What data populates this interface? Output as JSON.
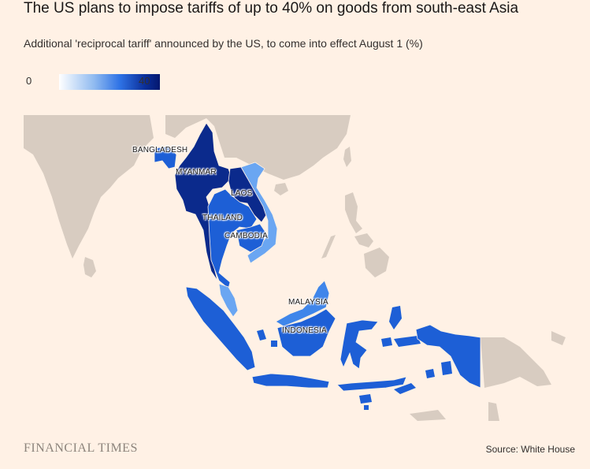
{
  "title": "The US plans to impose tariffs of up to 40% on goods from south-east Asia",
  "subtitle": "Additional 'reciprocal tariff' announced by the US, to come into effect August 1 (%)",
  "legend": {
    "min_label": "0",
    "max_label": "40",
    "min_value": 0,
    "max_value": 40
  },
  "countries": [
    {
      "label": "BANGLADESH",
      "tariff_rank": "high"
    },
    {
      "label": "MYANMAR",
      "tariff_rank": "max"
    },
    {
      "label": "LAOS",
      "tariff_rank": "max"
    },
    {
      "label": "THAILAND",
      "tariff_rank": "high"
    },
    {
      "label": "CAMBODIA",
      "tariff_rank": "high"
    },
    {
      "label": "MALAYSIA",
      "tariff_rank": "medium"
    },
    {
      "label": "INDONESIA",
      "tariff_rank": "high"
    }
  ],
  "colors": {
    "background": "#fff1e5",
    "land": "#d8ccc1",
    "max_tariff": "#0b2a8c",
    "high_tariff": "#1d5fd6",
    "medium_tariff": "#3f86ea",
    "light_tariff": "#6aa6f2"
  },
  "footer": {
    "brand": "FINANCIAL TIMES",
    "source": "Source: White House"
  }
}
